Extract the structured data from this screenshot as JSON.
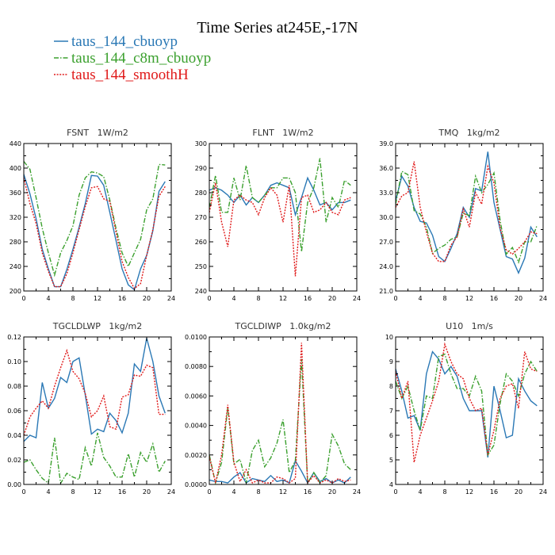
{
  "figure": {
    "title": "Time Series at245E,-17N",
    "legend": [
      {
        "name": "taus_144_cbuoyp",
        "color": "#2a78b5",
        "dash": "none"
      },
      {
        "name": "taus_144_c8m_cbuoyp",
        "color": "#3ba02e",
        "dash": "6,2,1.5,2"
      },
      {
        "name": "taus_144_smoothH",
        "color": "#e01a1a",
        "dash": "2,1.6"
      }
    ]
  },
  "chart_data": [
    {
      "type": "line",
      "title": "FSNT   1W/m2",
      "x": [
        0,
        1,
        2,
        3,
        4,
        5,
        6,
        7,
        8,
        9,
        10,
        11,
        12,
        13,
        14,
        15,
        16,
        17,
        18,
        19,
        20,
        21,
        22,
        23
      ],
      "xticks": [
        "0",
        "4",
        "8",
        "12",
        "16",
        "20",
        "24"
      ],
      "xlim": [
        0,
        24
      ],
      "yticks": [
        "200",
        "240",
        "280",
        "320",
        "360",
        "400",
        "440"
      ],
      "ylim": [
        200,
        440
      ],
      "series": [
        {
          "name": "taus_144_cbuoyp",
          "values": [
            390,
            358,
            318,
            268,
            236,
            207,
            207,
            235,
            268,
            304,
            342,
            388,
            387,
            372,
            328,
            282,
            236,
            210,
            202,
            236,
            258,
            298,
            362,
            378
          ]
        },
        {
          "name": "taus_144_c8m_cbuoyp",
          "values": [
            411,
            398,
            352,
            302,
            262,
            226,
            262,
            282,
            306,
            356,
            384,
            394,
            392,
            386,
            348,
            302,
            262,
            240,
            262,
            284,
            332,
            350,
            406,
            405
          ]
        },
        {
          "name": "taus_144_smoothH",
          "values": [
            384,
            342,
            310,
            262,
            232,
            207,
            207,
            228,
            262,
            300,
            337,
            368,
            370,
            350,
            346,
            296,
            248,
            222,
            204,
            212,
            258,
            300,
            354,
            370
          ]
        }
      ]
    },
    {
      "type": "line",
      "title": "FLNT   1W/m2",
      "x": [
        0,
        1,
        2,
        3,
        4,
        5,
        6,
        7,
        8,
        9,
        10,
        11,
        12,
        13,
        14,
        15,
        16,
        17,
        18,
        19,
        20,
        21,
        22,
        23
      ],
      "xticks": [
        "0",
        "4",
        "8",
        "12",
        "16",
        "20",
        "24"
      ],
      "xlim": [
        0,
        24
      ],
      "yticks": [
        "240",
        "250",
        "260",
        "270",
        "280",
        "290",
        "300"
      ],
      "ylim": [
        240,
        300
      ],
      "series": [
        {
          "name": "taus_144_cbuoyp",
          "values": [
            281,
            282,
            281,
            279,
            276,
            279,
            275,
            278,
            276,
            279,
            283,
            284,
            283,
            282,
            271,
            278,
            286,
            281,
            275,
            276,
            273,
            276,
            276,
            277
          ]
        },
        {
          "name": "taus_144_c8m_cbuoyp",
          "values": [
            274,
            287,
            272,
            272,
            286,
            277,
            291,
            278,
            276,
            279,
            282,
            282,
            286,
            286,
            280,
            256,
            276,
            282,
            294,
            268,
            278,
            274,
            285,
            283
          ]
        },
        {
          "name": "taus_144_smoothH",
          "values": [
            272,
            284,
            268,
            258,
            277,
            279,
            277,
            276,
            271,
            278,
            282,
            279,
            268,
            283,
            246,
            278,
            279,
            272,
            273,
            276,
            272,
            271,
            277,
            278
          ]
        }
      ]
    },
    {
      "type": "line",
      "title": "TMQ   1kg/m2",
      "x": [
        0,
        1,
        2,
        3,
        4,
        5,
        6,
        7,
        8,
        9,
        10,
        11,
        12,
        13,
        14,
        15,
        16,
        17,
        18,
        19,
        20,
        21,
        22,
        23
      ],
      "xticks": [
        "0",
        "4",
        "8",
        "12",
        "16",
        "20",
        "24"
      ],
      "xlim": [
        0,
        24
      ],
      "yticks": [
        "21.0",
        "24.0",
        "27.0",
        "30.0",
        "33.0",
        "36.0",
        "39.0"
      ],
      "ylim": [
        21,
        39
      ],
      "series": [
        {
          "name": "taus_144_cbuoyp",
          "values": [
            32.0,
            35.0,
            33.8,
            31.2,
            29.5,
            29.3,
            27.8,
            25.2,
            24.6,
            26.2,
            28.0,
            31.2,
            30.0,
            33.5,
            33.2,
            38.0,
            31.8,
            28.5,
            25.2,
            24.9,
            23.2,
            25.0,
            28.8,
            27.6
          ]
        },
        {
          "name": "taus_144_c8m_cbuoyp",
          "values": [
            31.6,
            35.6,
            35.2,
            30.8,
            30.4,
            28.8,
            25.6,
            26.2,
            26.6,
            27.3,
            27.6,
            30.5,
            30.2,
            35.0,
            33.0,
            34.0,
            35.4,
            29.6,
            25.5,
            26.3,
            24.5,
            27.0,
            27.0,
            29.0
          ]
        },
        {
          "name": "taus_144_smoothH",
          "values": [
            31.2,
            32.6,
            33.0,
            36.8,
            31.2,
            28.2,
            25.6,
            24.6,
            24.6,
            26.6,
            27.6,
            31.0,
            28.8,
            33.0,
            31.6,
            36.2,
            34.2,
            28.7,
            26.0,
            25.5,
            26.2,
            27.0,
            28.2,
            28.0
          ]
        }
      ]
    },
    {
      "type": "line",
      "title": "TGCLDLWP   1kg/m2",
      "x": [
        0,
        1,
        2,
        3,
        4,
        5,
        6,
        7,
        8,
        9,
        10,
        11,
        12,
        13,
        14,
        15,
        16,
        17,
        18,
        19,
        20,
        21,
        22,
        23
      ],
      "xticks": [
        "0",
        "4",
        "8",
        "12",
        "16",
        "20",
        "24"
      ],
      "xlim": [
        0,
        24
      ],
      "yticks": [
        "0.00",
        "0.02",
        "0.04",
        "0.06",
        "0.08",
        "0.10",
        "0.12"
      ],
      "ylim": [
        0,
        0.12
      ],
      "series": [
        {
          "name": "taus_144_cbuoyp",
          "values": [
            0.035,
            0.04,
            0.038,
            0.083,
            0.062,
            0.07,
            0.087,
            0.083,
            0.1,
            0.103,
            0.073,
            0.041,
            0.045,
            0.043,
            0.058,
            0.052,
            0.042,
            0.058,
            0.098,
            0.092,
            0.119,
            0.1,
            0.072,
            0.058
          ]
        },
        {
          "name": "taus_144_c8m_cbuoyp",
          "values": [
            0.018,
            0.02,
            0.012,
            0.005,
            0.001,
            0.038,
            0.001,
            0.009,
            0.006,
            0.004,
            0.03,
            0.015,
            0.042,
            0.022,
            0.015,
            0.006,
            0.006,
            0.025,
            0.006,
            0.026,
            0.018,
            0.033,
            0.01,
            0.019
          ]
        },
        {
          "name": "taus_144_smoothH",
          "values": [
            0.04,
            0.055,
            0.062,
            0.068,
            0.062,
            0.08,
            0.095,
            0.109,
            0.092,
            0.086,
            0.074,
            0.055,
            0.06,
            0.072,
            0.047,
            0.045,
            0.071,
            0.073,
            0.089,
            0.088,
            0.097,
            0.095,
            0.057,
            0.057
          ]
        }
      ]
    },
    {
      "type": "line",
      "title": "TGCLDIWP   1.0kg/m2",
      "x": [
        0,
        1,
        2,
        3,
        4,
        5,
        6,
        7,
        8,
        9,
        10,
        11,
        12,
        13,
        14,
        15,
        16,
        17,
        18,
        19,
        20,
        21,
        22,
        23
      ],
      "xticks": [
        "0",
        "4",
        "8",
        "12",
        "16",
        "20",
        "24"
      ],
      "xlim": [
        0,
        24
      ],
      "yticks": [
        "0.0000",
        "0.0020",
        "0.0040",
        "0.0060",
        "0.0080",
        "0.0100"
      ],
      "ylim": [
        0,
        0.01
      ],
      "series": [
        {
          "name": "taus_144_cbuoyp",
          "values": [
            0.0003,
            0.0002,
            0.0002,
            0.0001,
            0.0005,
            0.0008,
            0.0001,
            0.0004,
            0.0003,
            0.0002,
            0.0006,
            0.0002,
            0.0003,
            0.0001,
            0.0016,
            0.0009,
            0.0001,
            0.0008,
            0.0002,
            0.0004,
            0.0001,
            0.0003,
            0.0001,
            0.0005
          ]
        },
        {
          "name": "taus_144_c8m_cbuoyp",
          "values": [
            0.002,
            0.0001,
            0.0015,
            0.0052,
            0.0014,
            0.0017,
            0.0001,
            0.0023,
            0.003,
            0.0012,
            0.0018,
            0.0028,
            0.0044,
            0.0008,
            0.0016,
            0.0085,
            0.0001,
            0.0008,
            0.0001,
            0.0006,
            0.0034,
            0.0026,
            0.0014,
            0.001
          ]
        },
        {
          "name": "taus_144_smoothH",
          "values": [
            0.0019,
            0.0001,
            0.002,
            0.0054,
            0.0015,
            0.0002,
            0.001,
            0.0001,
            0.0003,
            0.0001,
            0.0001,
            0.0005,
            0.0004,
            0.0001,
            0.0004,
            0.0096,
            0.0001,
            0.0006,
            0.0001,
            0.0003,
            0.0001,
            0.0004,
            0.0002,
            0.0003
          ]
        }
      ]
    },
    {
      "type": "line",
      "title": "U10   1m/s",
      "x": [
        0,
        1,
        2,
        3,
        4,
        5,
        6,
        7,
        8,
        9,
        10,
        11,
        12,
        13,
        14,
        15,
        16,
        17,
        18,
        19,
        20,
        21,
        22,
        23
      ],
      "xticks": [
        "0",
        "4",
        "8",
        "12",
        "16",
        "20",
        "24"
      ],
      "xlim": [
        0,
        24
      ],
      "yticks": [
        "4",
        "5",
        "6",
        "7",
        "8",
        "9",
        "10"
      ],
      "ylim": [
        4,
        10
      ],
      "series": [
        {
          "name": "taus_144_cbuoyp",
          "values": [
            8.7,
            7.8,
            6.7,
            6.8,
            6.2,
            8.5,
            9.4,
            9.1,
            8.5,
            8.8,
            8.4,
            7.5,
            7.0,
            7.0,
            7.0,
            5.1,
            8.0,
            7.0,
            5.9,
            6.0,
            8.3,
            7.8,
            7.4,
            7.2
          ]
        },
        {
          "name": "taus_144_c8m_cbuoyp",
          "values": [
            8.2,
            7.5,
            8.0,
            7.0,
            6.2,
            7.6,
            7.5,
            9.2,
            9.3,
            8.5,
            7.9,
            7.9,
            7.6,
            8.4,
            7.8,
            5.2,
            5.6,
            7.3,
            8.5,
            8.2,
            7.6,
            8.5,
            9.0,
            8.6
          ]
        },
        {
          "name": "taus_144_smoothH",
          "values": [
            8.6,
            7.5,
            8.2,
            4.9,
            6.0,
            6.7,
            7.4,
            8.2,
            9.7,
            9.0,
            8.5,
            8.3,
            7.5,
            7.0,
            7.1,
            5.2,
            6.2,
            7.5,
            8.0,
            8.1,
            7.1,
            9.4,
            8.7,
            8.6
          ]
        }
      ]
    }
  ]
}
